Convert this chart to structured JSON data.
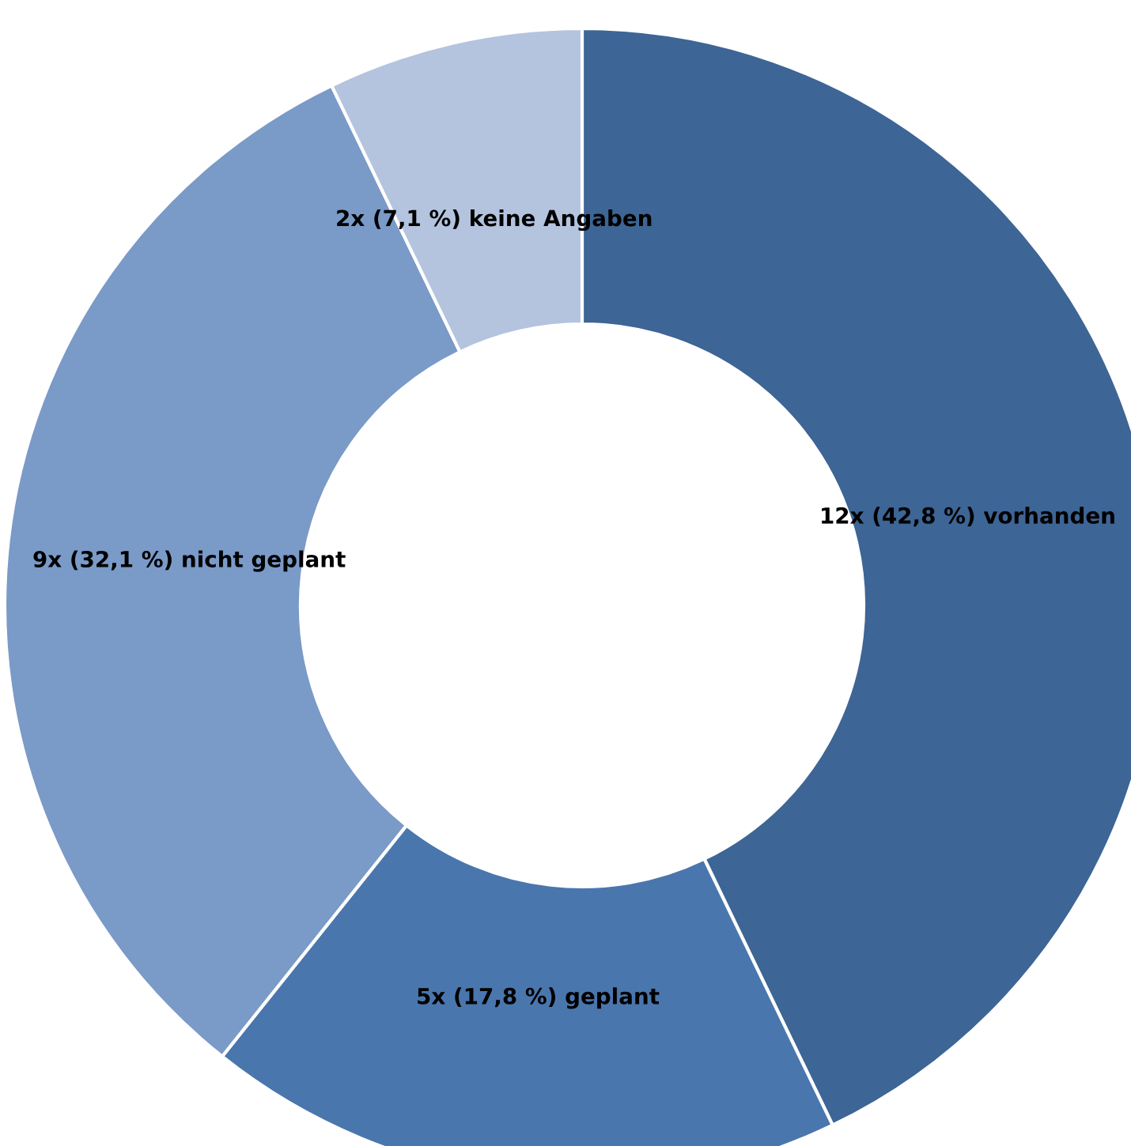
{
  "chart_data": {
    "type": "donut",
    "categories": [
      "vorhanden",
      "geplant",
      "nicht geplant",
      "keine Angaben"
    ],
    "values": [
      12,
      5,
      9,
      2
    ],
    "value_labels": [
      "12x (42,8 %)",
      "5x (17,8 %)",
      "9x (32,1 %)",
      "2x (7,1 %)"
    ],
    "colors": [
      "#3d6595",
      "#4a76ae",
      "#7a9ac8",
      "#b4c4df"
    ],
    "legend": false
  }
}
